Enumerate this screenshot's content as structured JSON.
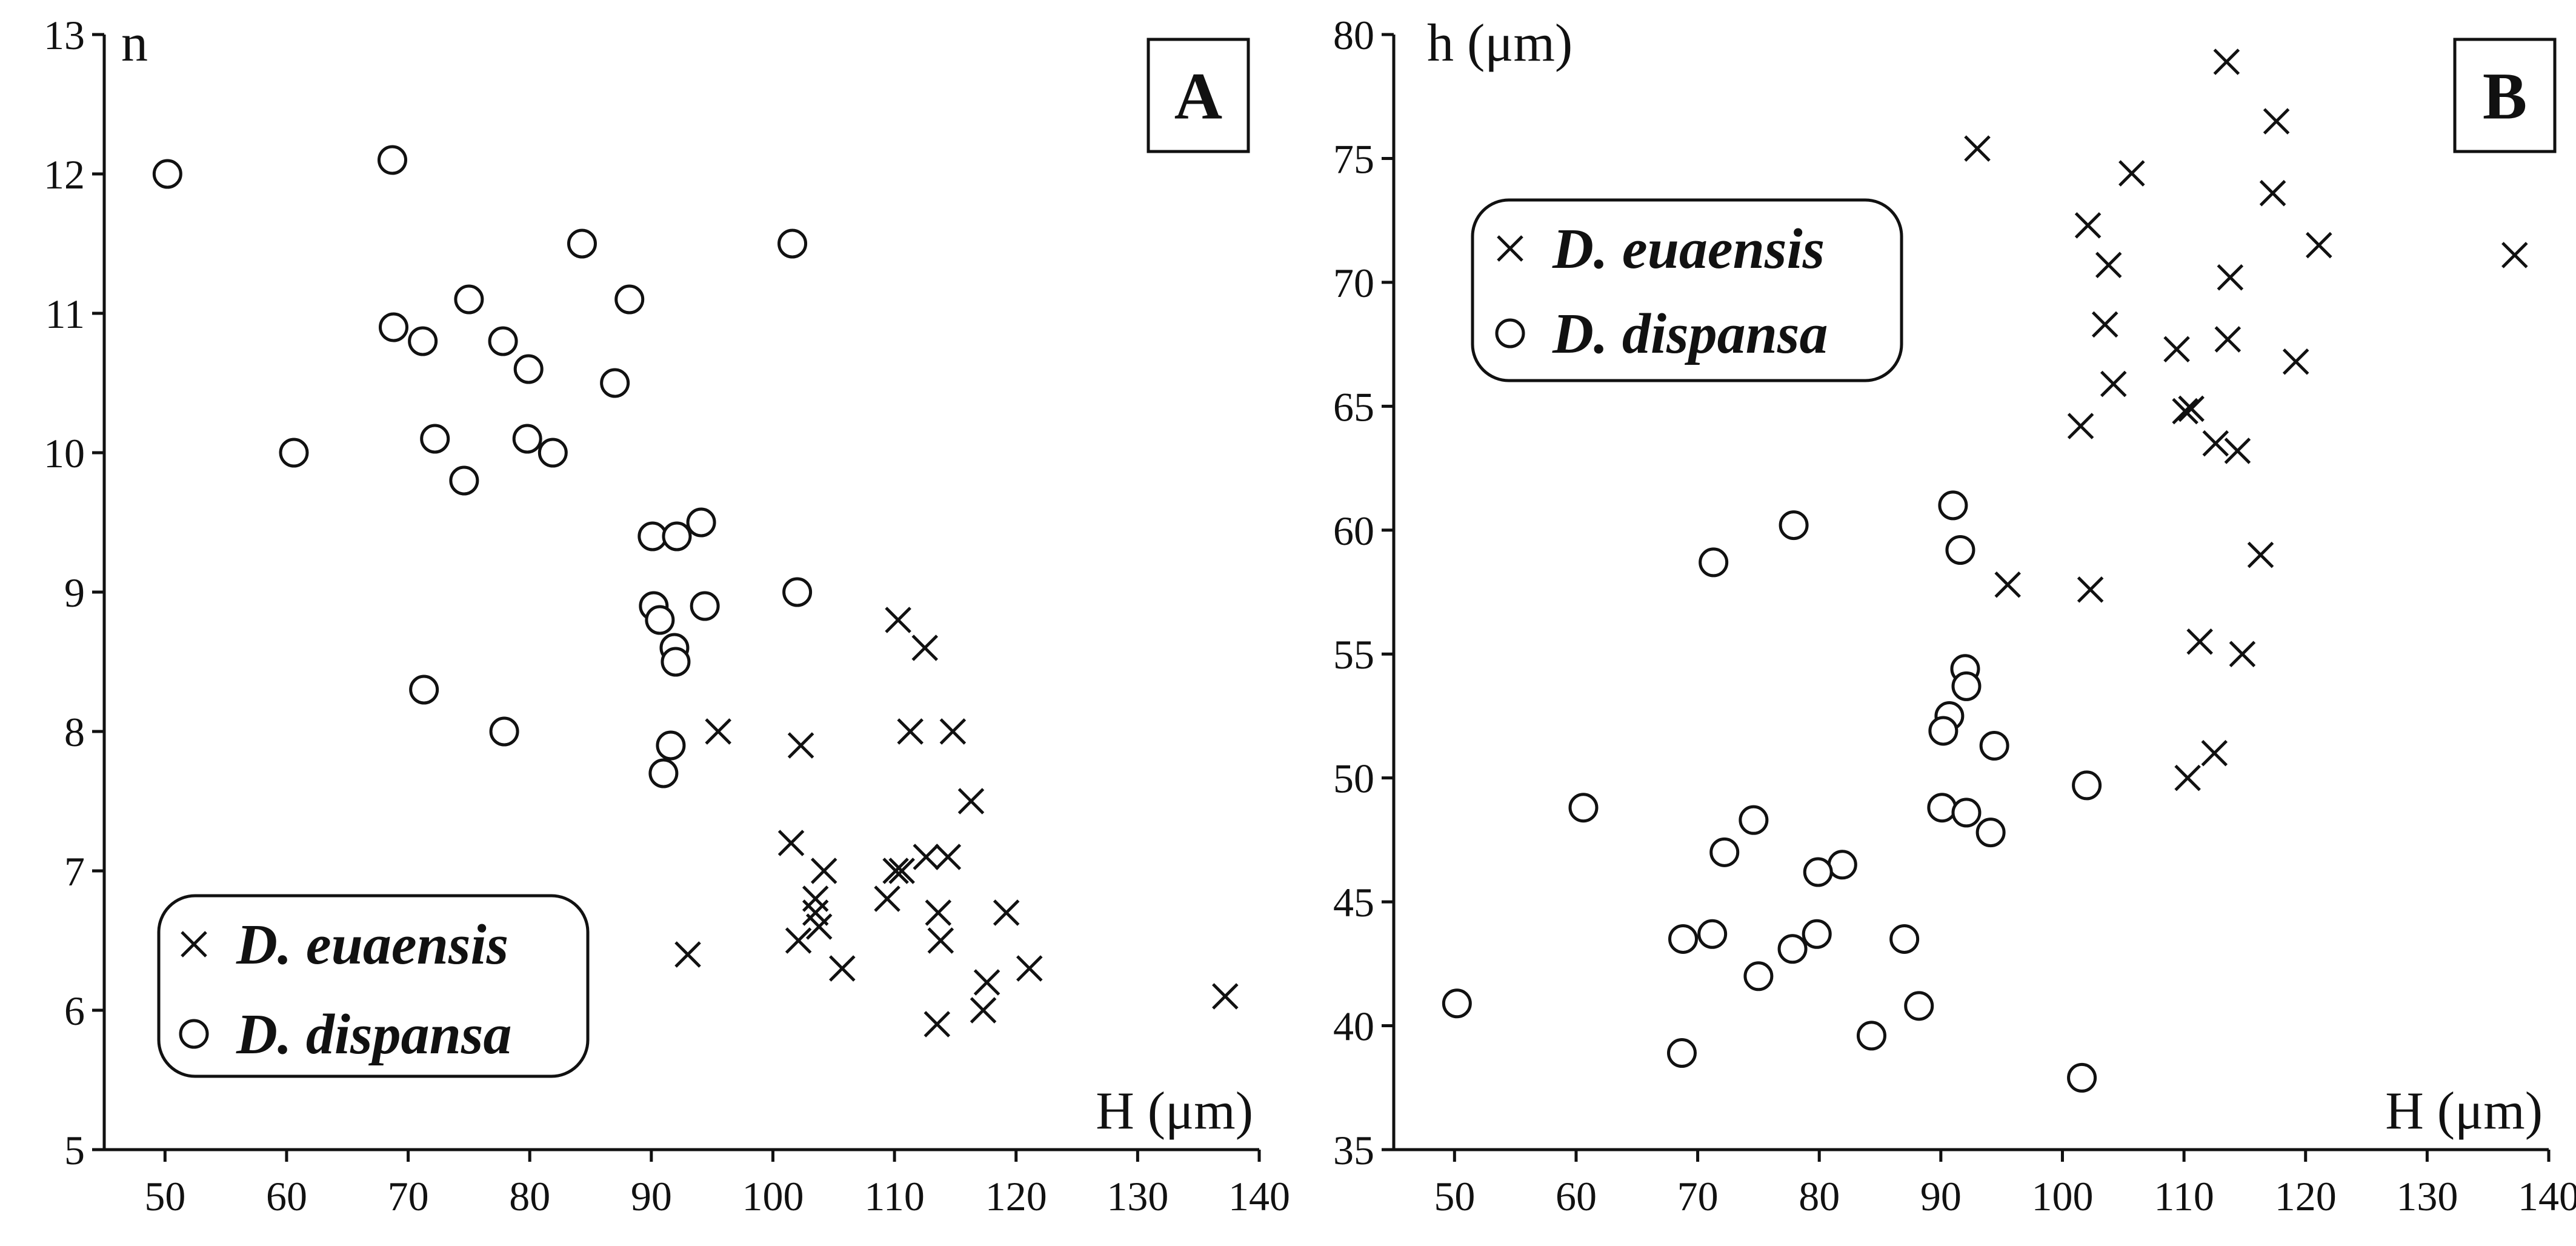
{
  "chart_data": [
    {
      "type": "scatter",
      "panel": "A",
      "xlabel": "H (μm)",
      "ylabel": "n",
      "xlim": [
        45,
        140
      ],
      "ylim": [
        5,
        13
      ],
      "xticks": [
        50,
        60,
        70,
        80,
        90,
        100,
        110,
        120,
        130,
        140
      ],
      "yticks": [
        5,
        6,
        7,
        8,
        9,
        10,
        11,
        12,
        13
      ],
      "legend_position": "bottom-left",
      "series": [
        {
          "name": "D. euaensis",
          "marker": "x",
          "points": [
            [
              95.5,
              8.0
            ],
            [
              102.3,
              7.9
            ],
            [
              110.3,
              8.8
            ],
            [
              112.5,
              8.6
            ],
            [
              111.3,
              8.0
            ],
            [
              114.8,
              8.0
            ],
            [
              116.3,
              7.5
            ],
            [
              101.5,
              7.2
            ],
            [
              104.2,
              7.0
            ],
            [
              110.1,
              7.0
            ],
            [
              110.6,
              7.0
            ],
            [
              109.4,
              6.8
            ],
            [
              112.6,
              7.1
            ],
            [
              114.4,
              7.1
            ],
            [
              103.5,
              6.8
            ],
            [
              103.5,
              6.7
            ],
            [
              103.8,
              6.6
            ],
            [
              102.1,
              6.5
            ],
            [
              113.6,
              6.7
            ],
            [
              119.2,
              6.7
            ],
            [
              113.8,
              6.5
            ],
            [
              93.0,
              6.4
            ],
            [
              105.7,
              6.3
            ],
            [
              121.1,
              6.3
            ],
            [
              117.6,
              6.2
            ],
            [
              117.3,
              6.0
            ],
            [
              113.5,
              5.9
            ],
            [
              137.2,
              6.1
            ]
          ]
        },
        {
          "name": "D. dispansa",
          "marker": "o",
          "points": [
            [
              50.2,
              12.0
            ],
            [
              68.7,
              12.1
            ],
            [
              84.3,
              11.5
            ],
            [
              101.6,
              11.5
            ],
            [
              88.2,
              11.1
            ],
            [
              75.0,
              11.1
            ],
            [
              68.8,
              10.9
            ],
            [
              71.2,
              10.8
            ],
            [
              77.8,
              10.8
            ],
            [
              79.9,
              10.6
            ],
            [
              87.0,
              10.5
            ],
            [
              60.6,
              10.0
            ],
            [
              72.2,
              10.1
            ],
            [
              79.8,
              10.1
            ],
            [
              81.9,
              10.0
            ],
            [
              74.6,
              9.8
            ],
            [
              90.1,
              9.4
            ],
            [
              92.1,
              9.4
            ],
            [
              94.1,
              9.5
            ],
            [
              102.0,
              9.0
            ],
            [
              90.2,
              8.9
            ],
            [
              94.4,
              8.9
            ],
            [
              90.7,
              8.8
            ],
            [
              91.9,
              8.6
            ],
            [
              92.0,
              8.5
            ],
            [
              71.3,
              8.3
            ],
            [
              77.9,
              8.0
            ],
            [
              91.6,
              7.9
            ],
            [
              91.0,
              7.7
            ]
          ]
        }
      ]
    },
    {
      "type": "scatter",
      "panel": "B",
      "xlabel": "H (μm)",
      "ylabel": "h (μm)",
      "xlim": [
        45,
        140
      ],
      "ylim": [
        35,
        80
      ],
      "xticks": [
        50,
        60,
        70,
        80,
        90,
        100,
        110,
        120,
        130,
        140
      ],
      "yticks": [
        35,
        40,
        45,
        50,
        55,
        60,
        65,
        70,
        75,
        80
      ],
      "legend_position": "top-left",
      "series": [
        {
          "name": "D. euaensis",
          "marker": "x",
          "points": [
            [
              113.5,
              78.9
            ],
            [
              93.0,
              75.4
            ],
            [
              117.6,
              76.5
            ],
            [
              105.7,
              74.4
            ],
            [
              117.3,
              73.6
            ],
            [
              102.1,
              72.3
            ],
            [
              121.1,
              71.5
            ],
            [
              137.2,
              71.1
            ],
            [
              103.8,
              70.7
            ],
            [
              113.8,
              70.2
            ],
            [
              103.5,
              68.3
            ],
            [
              109.4,
              67.3
            ],
            [
              113.6,
              67.7
            ],
            [
              119.2,
              66.8
            ],
            [
              104.2,
              65.9
            ],
            [
              110.1,
              64.8
            ],
            [
              110.6,
              64.9
            ],
            [
              101.5,
              64.2
            ],
            [
              112.6,
              63.5
            ],
            [
              114.4,
              63.2
            ],
            [
              116.3,
              59.0
            ],
            [
              95.5,
              57.8
            ],
            [
              102.3,
              57.6
            ],
            [
              111.3,
              55.5
            ],
            [
              114.8,
              55.0
            ],
            [
              112.5,
              51.0
            ],
            [
              110.3,
              50.0
            ]
          ]
        },
        {
          "name": "D. dispansa",
          "marker": "o",
          "points": [
            [
              91.0,
              61.0
            ],
            [
              77.9,
              60.2
            ],
            [
              71.3,
              58.7
            ],
            [
              91.6,
              59.2
            ],
            [
              92.0,
              54.4
            ],
            [
              92.1,
              53.7
            ],
            [
              90.7,
              52.5
            ],
            [
              90.2,
              51.9
            ],
            [
              94.4,
              51.3
            ],
            [
              102.0,
              49.7
            ],
            [
              60.6,
              48.8
            ],
            [
              90.1,
              48.8
            ],
            [
              92.1,
              48.6
            ],
            [
              74.6,
              48.3
            ],
            [
              94.1,
              47.8
            ],
            [
              72.2,
              47.0
            ],
            [
              81.9,
              46.5
            ],
            [
              79.9,
              46.2
            ],
            [
              68.8,
              43.5
            ],
            [
              71.2,
              43.7
            ],
            [
              79.8,
              43.7
            ],
            [
              77.8,
              43.1
            ],
            [
              87.0,
              43.5
            ],
            [
              75.0,
              42.0
            ],
            [
              50.2,
              40.9
            ],
            [
              88.2,
              40.8
            ],
            [
              84.3,
              39.6
            ],
            [
              68.7,
              38.9
            ],
            [
              101.6,
              37.9
            ]
          ]
        }
      ]
    }
  ]
}
